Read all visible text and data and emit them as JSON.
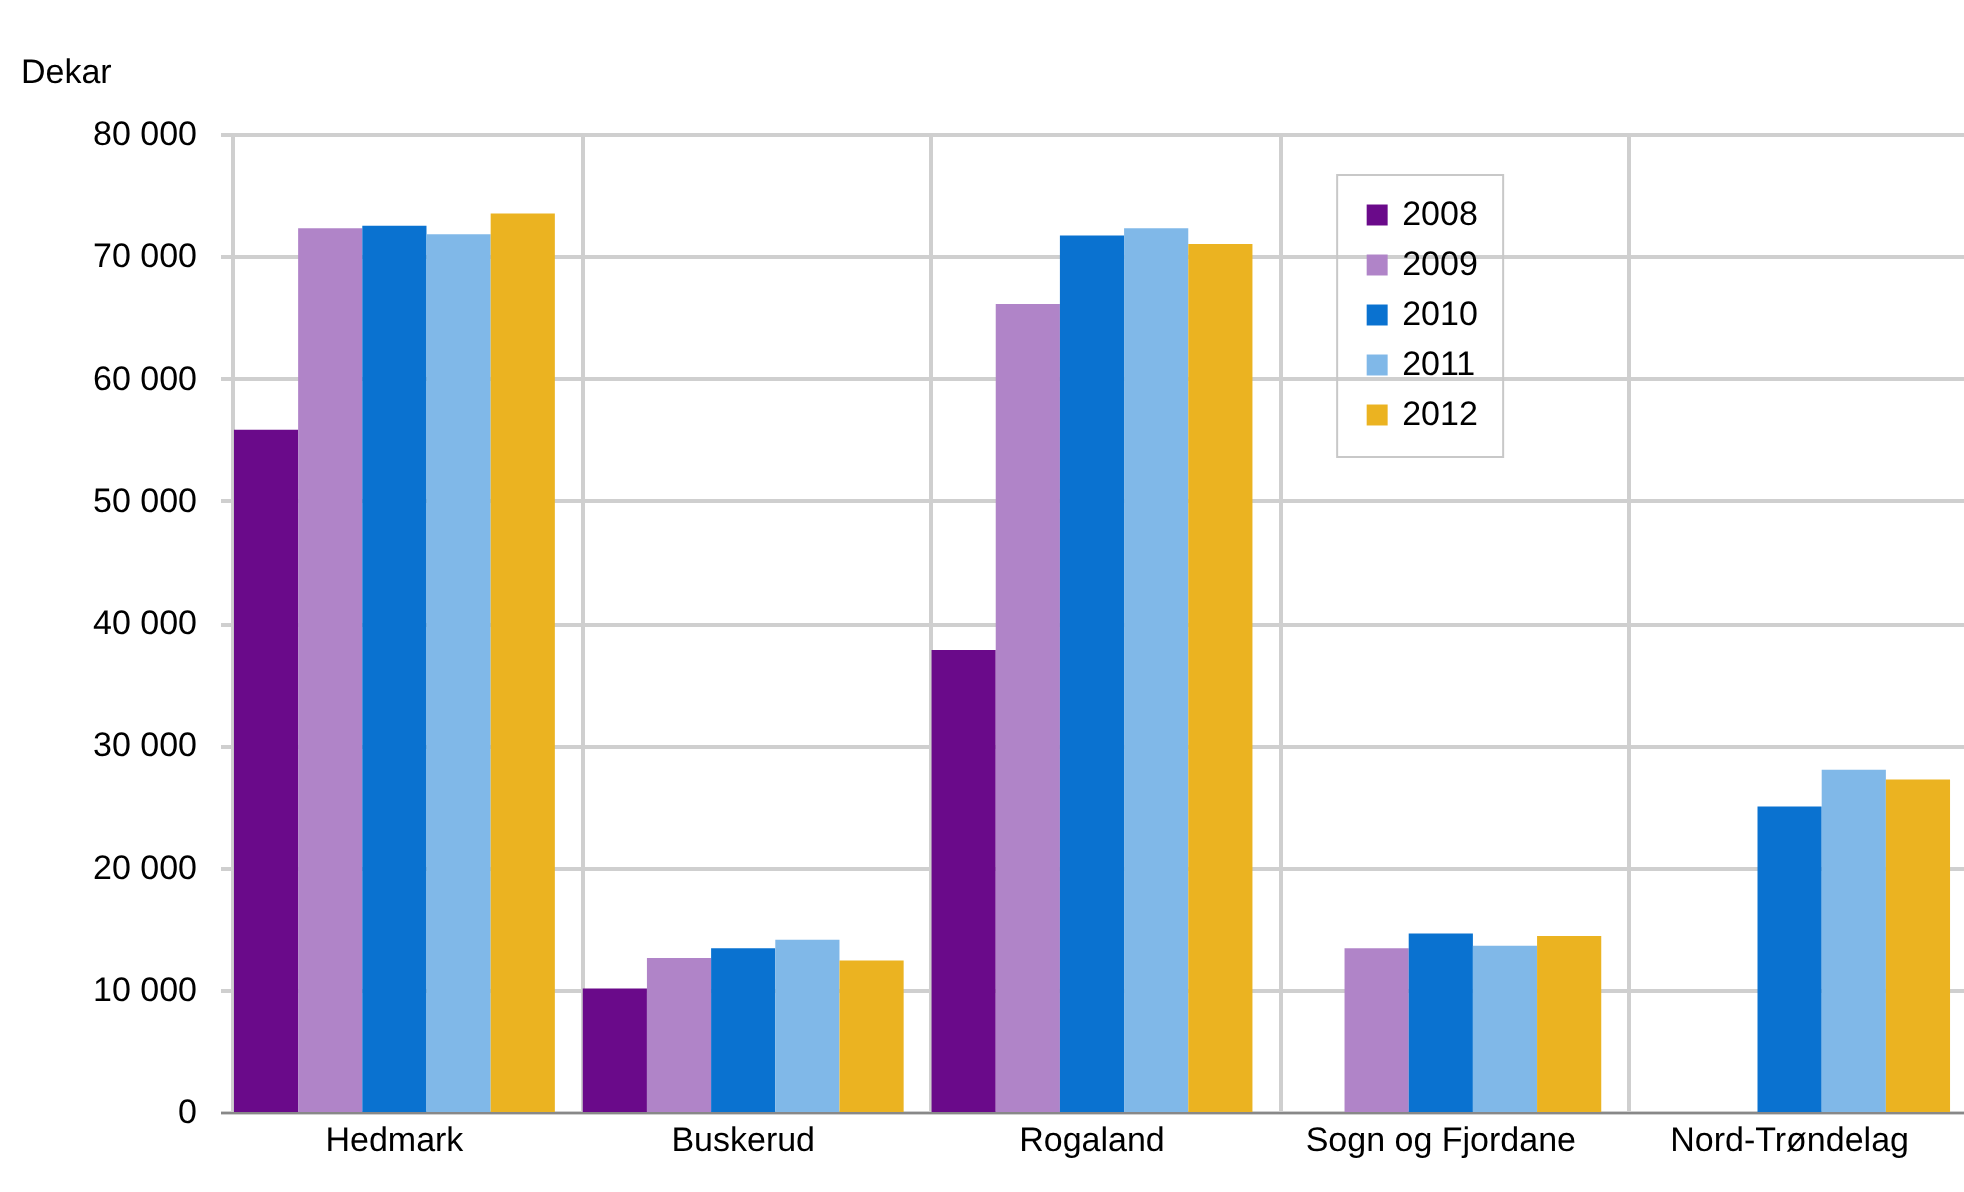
{
  "chart_data": {
    "type": "bar",
    "ylabel": "Dekar",
    "categories": [
      "Hedmark",
      "Buskerud",
      "Rogaland",
      "Sogn og Fjordane",
      "Nord-Trøndelag"
    ],
    "series": [
      {
        "name": "2008",
        "color": "#6a0a8a",
        "values": [
          55800,
          10100,
          37800,
          null,
          null
        ]
      },
      {
        "name": "2009",
        "color": "#b084c8",
        "values": [
          72300,
          12600,
          66100,
          13400,
          null
        ]
      },
      {
        "name": "2010",
        "color": "#0a72d0",
        "values": [
          72500,
          13400,
          71700,
          14600,
          25000
        ]
      },
      {
        "name": "2011",
        "color": "#80b8e8",
        "values": [
          71800,
          14100,
          72300,
          13600,
          28000
        ]
      },
      {
        "name": "2012",
        "color": "#ebb321",
        "values": [
          73500,
          12400,
          71000,
          14400,
          27200
        ]
      }
    ],
    "ylim": [
      0,
      80000
    ],
    "yticks": [
      {
        "value": 0,
        "label": "0"
      },
      {
        "value": 10000,
        "label": "10 000"
      },
      {
        "value": 20000,
        "label": "20 000"
      },
      {
        "value": 30000,
        "label": "30 000"
      },
      {
        "value": 40000,
        "label": "40 000"
      },
      {
        "value": 50000,
        "label": "50 000"
      },
      {
        "value": 60000,
        "label": "60 000"
      },
      {
        "value": 70000,
        "label": "70 000"
      },
      {
        "value": 80000,
        "label": "80 000"
      }
    ],
    "grid": true,
    "legend": "top right"
  }
}
